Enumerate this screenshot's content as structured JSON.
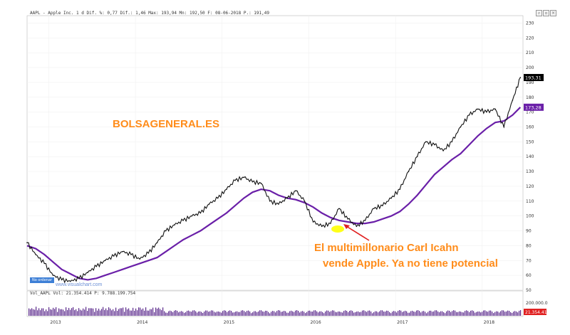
{
  "header": {
    "symbol": "AAPL - Apple Inc.",
    "info": "1 d Dif. %: 0,77 Dif.: 1,46 Max: 193,94 Mn: 192,50 F: 08-06-2018 P.: 191,49"
  },
  "brand": "BOLSAGENERAL.ES",
  "annotation": {
    "line1": "El multimillonario Carl Icahn",
    "line2": "vende Apple. Ya no tiene potencial"
  },
  "watermark": "www.visualchart.com",
  "legend_label": "No ordenar",
  "volume_header": "Vol_AAPL Vol: 21.354.414 P: 9.788.199.754",
  "colors": {
    "price": "#111111",
    "moving_average": "#6a1fa8",
    "price_tag": "#000000",
    "ma_tag": "#6a1fa8",
    "volume": "#5b2a8c",
    "brand": "#ff8c1a",
    "arrow": "#e02020",
    "highlight": "#ffff00"
  },
  "window_buttons": [
    "search-icon",
    "restore-icon",
    "close-icon"
  ],
  "chart_data": {
    "type": "line",
    "x_axis": {
      "labels": [
        "2013",
        "2014",
        "2015",
        "2016",
        "2017",
        "2018"
      ]
    },
    "y_axis": {
      "ticks": [
        50,
        60,
        70,
        80,
        90,
        100,
        110,
        120,
        130,
        140,
        150,
        160,
        170,
        180,
        190,
        200,
        210,
        220,
        230
      ],
      "range": [
        50,
        235
      ]
    },
    "series": [
      {
        "kind": "price",
        "x": [
          2012.75,
          2012.85,
          2012.95,
          2013.05,
          2013.15,
          2013.25,
          2013.35,
          2013.45,
          2013.55,
          2013.65,
          2013.75,
          2013.85,
          2013.95,
          2014.05,
          2014.15,
          2014.25,
          2014.35,
          2014.45,
          2014.55,
          2014.65,
          2014.75,
          2014.85,
          2014.95,
          2015.05,
          2015.15,
          2015.25,
          2015.35,
          2015.45,
          2015.55,
          2015.65,
          2015.75,
          2015.85,
          2015.95,
          2016.05,
          2016.15,
          2016.25,
          2016.35,
          2016.45,
          2016.55,
          2016.65,
          2016.75,
          2016.85,
          2016.95,
          2017.05,
          2017.15,
          2017.25,
          2017.35,
          2017.45,
          2017.55,
          2017.65,
          2017.75,
          2017.85,
          2017.95,
          2018.05,
          2018.15,
          2018.25,
          2018.35,
          2018.44
        ],
        "values": [
          82,
          74,
          68,
          60,
          57,
          56,
          58,
          62,
          66,
          70,
          73,
          76,
          74,
          71,
          75,
          82,
          90,
          94,
          97,
          100,
          102,
          108,
          112,
          118,
          124,
          126,
          123,
          122,
          110,
          108,
          112,
          117,
          110,
          96,
          93,
          95,
          105,
          98,
          93,
          97,
          105,
          107,
          112,
          118,
          130,
          140,
          150,
          148,
          144,
          150,
          160,
          168,
          172,
          170,
          172,
          160,
          178,
          193.31
        ]
      },
      {
        "kind": "moving_average",
        "x": [
          2012.75,
          2012.85,
          2012.95,
          2013.05,
          2013.15,
          2013.25,
          2013.35,
          2013.45,
          2013.55,
          2013.65,
          2013.75,
          2013.85,
          2013.95,
          2014.05,
          2014.15,
          2014.25,
          2014.35,
          2014.45,
          2014.55,
          2014.65,
          2014.75,
          2014.85,
          2014.95,
          2015.05,
          2015.15,
          2015.25,
          2015.35,
          2015.45,
          2015.55,
          2015.65,
          2015.75,
          2015.85,
          2015.95,
          2016.05,
          2016.15,
          2016.25,
          2016.35,
          2016.45,
          2016.55,
          2016.65,
          2016.75,
          2016.85,
          2016.95,
          2017.05,
          2017.15,
          2017.25,
          2017.35,
          2017.45,
          2017.55,
          2017.65,
          2017.75,
          2017.85,
          2017.95,
          2018.05,
          2018.15,
          2018.25,
          2018.35,
          2018.44
        ],
        "values": [
          80,
          78,
          74,
          69,
          64,
          61,
          58,
          57,
          58,
          60,
          62,
          64,
          66,
          68,
          70,
          72,
          76,
          80,
          84,
          87,
          90,
          94,
          98,
          102,
          107,
          112,
          116,
          118,
          117,
          114,
          112,
          111,
          109,
          106,
          102,
          99,
          97,
          96,
          95,
          95,
          96,
          98,
          100,
          103,
          108,
          114,
          121,
          128,
          133,
          138,
          142,
          148,
          154,
          159,
          163,
          164,
          168,
          173.28
        ]
      }
    ],
    "last_values": {
      "price": "193,31",
      "moving_average": "173,28"
    },
    "volume": {
      "ticks": [
        "200.000.0"
      ],
      "last_label": "21.354.414"
    }
  }
}
